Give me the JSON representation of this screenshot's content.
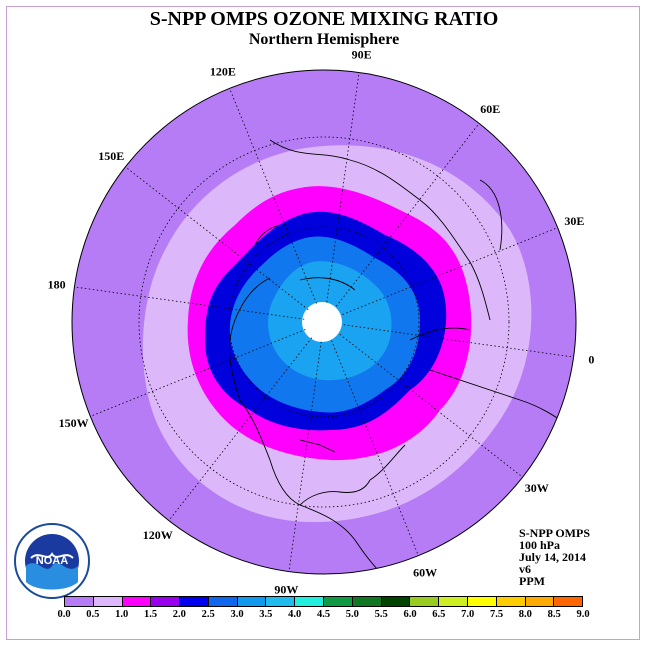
{
  "header": {
    "title": "S-NPP OMPS OZONE MIXING RATIO",
    "subtitle": "Northern Hemisphere"
  },
  "longitude_labels": [
    "90E",
    "60E",
    "30E",
    "0",
    "30W",
    "60W",
    "90W",
    "120W",
    "150W",
    "180",
    "150E",
    "120E"
  ],
  "info": {
    "instrument": "S-NPP OMPS",
    "pressure": "100 hPa",
    "date": "July 14, 2014",
    "version": "v6",
    "units": "PPM"
  },
  "colorbar": {
    "colors": [
      "#b57cf6",
      "#dcb8fa",
      "#ff00ff",
      "#9900ee",
      "#0000ee",
      "#1166ee",
      "#1199ee",
      "#22bbee",
      "#22eedd",
      "#119944",
      "#117722",
      "#004400",
      "#99cc22",
      "#ccee22",
      "#ffff00",
      "#ffcc00",
      "#ffaa00",
      "#ff6600",
      "#ff0000",
      "#cc1111",
      "#884422"
    ],
    "tick_labels": [
      "0.0",
      "0.5",
      "1.0",
      "1.5",
      "2.0",
      "2.5",
      "3.0",
      "3.5",
      "4.0",
      "4.5",
      "5.0",
      "5.5",
      "6.0",
      "6.5",
      "7.0",
      "7.5",
      "8.0",
      "8.5",
      "9.0"
    ]
  },
  "map_colors": {
    "outer": "#b57cf6",
    "light": "#dcb8fa",
    "magenta": "#ff00ff",
    "dark_blue": "#0000dd",
    "blue": "#1177ee",
    "light_blue": "#1aa3f0",
    "pole": "#ffffff"
  },
  "logo_text": "NOAA"
}
